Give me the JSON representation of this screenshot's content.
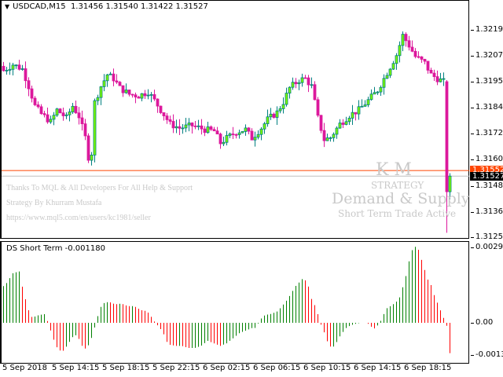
{
  "header": {
    "symbol": "USDCAD,M15",
    "ohlc": "1.31456 1.31540 1.31422 1.31527"
  },
  "indicator": {
    "title": "DS Short Term -0.001180"
  },
  "credits": [
    "Thanks To MQL & All Developers For All Help & Support",
    "Strategy By Khurram Mustafa",
    "https://www.mql5.com/en/users/kc1981/seller"
  ],
  "watermark": {
    "initials": "K M",
    "strategy": "STRATEGY",
    "title": "Demand & Supply",
    "status": "Short Term Trade Active"
  },
  "price_axis": [
    "1.32190",
    "1.32075",
    "1.31955",
    "1.31840",
    "1.31720",
    "1.31600",
    "1.31485",
    "1.31365",
    "1.31250"
  ],
  "price_tags": {
    "ask": "1.31552",
    "bid": "1.31527"
  },
  "indicator_axis": [
    "0.002969",
    "0.00",
    "-0.001377"
  ],
  "time_axis": [
    "5 Sep 2018",
    "5 Sep 14:15",
    "5 Sep 18:15",
    "5 Sep 22:15",
    "6 Sep 02:15",
    "6 Sep 06:15",
    "6 Sep 10:15",
    "6 Sep 14:15",
    "6 Sep 18:15"
  ],
  "colors": {
    "bull_body": "#7cfc00",
    "bull_line": "#008080",
    "bear": "#dc189c",
    "ask_line": "#ff4500",
    "bid_line": "#c0c0c0",
    "hist_up": "#008000",
    "hist_down": "#ff0000"
  },
  "candles": {
    "count": 143,
    "close_waypoints": [
      [
        0,
        1.32005
      ],
      [
        3,
        1.32033
      ],
      [
        6,
        1.32012
      ],
      [
        8,
        1.31934
      ],
      [
        10,
        1.31845
      ],
      [
        12,
        1.31809
      ],
      [
        15,
        1.31773
      ],
      [
        17,
        1.31827
      ],
      [
        20,
        1.31791
      ],
      [
        22,
        1.31845
      ],
      [
        24,
        1.31798
      ],
      [
        26,
        1.31702
      ],
      [
        27,
        1.31613
      ],
      [
        28,
        1.31631
      ],
      [
        29,
        1.31862
      ],
      [
        31,
        1.31934
      ],
      [
        33,
        1.31987
      ],
      [
        35,
        1.31969
      ],
      [
        37,
        1.31927
      ],
      [
        40,
        1.31898
      ],
      [
        43,
        1.31891
      ],
      [
        46,
        1.31909
      ],
      [
        48,
        1.3187
      ],
      [
        50,
        1.31827
      ],
      [
        53,
        1.31763
      ],
      [
        56,
        1.31745
      ],
      [
        60,
        1.31756
      ],
      [
        64,
        1.31738
      ],
      [
        67,
        1.31731
      ],
      [
        69,
        1.31677
      ],
      [
        71,
        1.31699
      ],
      [
        74,
        1.31727
      ],
      [
        77,
        1.31738
      ],
      [
        79,
        1.31699
      ],
      [
        82,
        1.31745
      ],
      [
        84,
        1.31784
      ],
      [
        87,
        1.31816
      ],
      [
        89,
        1.31862
      ],
      [
        91,
        1.31927
      ],
      [
        94,
        1.31962
      ],
      [
        96,
        1.31969
      ],
      [
        98,
        1.31934
      ],
      [
        100,
        1.31791
      ],
      [
        102,
        1.31692
      ],
      [
        104,
        1.31702
      ],
      [
        107,
        1.31763
      ],
      [
        110,
        1.31802
      ],
      [
        113,
        1.31827
      ],
      [
        116,
        1.3187
      ],
      [
        119,
        1.31916
      ],
      [
        121,
        1.31969
      ],
      [
        125,
        1.32076
      ],
      [
        127,
        1.32165
      ],
      [
        129,
        1.32119
      ],
      [
        131,
        1.32069
      ],
      [
        134,
        1.3204
      ],
      [
        136,
        1.31987
      ],
      [
        138,
        1.31969
      ],
      [
        140,
        1.31955
      ],
      [
        141,
        1.31456
      ],
      [
        142,
        1.31527
      ]
    ],
    "last": {
      "open": 1.31456,
      "high": 1.3154,
      "low": 1.31422,
      "close": 1.31527
    },
    "prev_low": 1.3127
  },
  "histogram": {
    "count": 141,
    "waypoints": [
      [
        0,
        0.00143
      ],
      [
        1,
        0.00155
      ],
      [
        3,
        0.00194
      ],
      [
        5,
        0.002
      ],
      [
        6,
        0.00135
      ],
      [
        7,
        0.00087
      ],
      [
        8,
        0.00044
      ],
      [
        9,
        0.0002
      ],
      [
        11,
        0.0003
      ],
      [
        13,
        0.00034
      ],
      [
        14,
        0
      ],
      [
        15,
        -0.00038
      ],
      [
        16,
        -0.00074
      ],
      [
        17,
        -0.00102
      ],
      [
        18,
        -0.0011
      ],
      [
        19,
        -0.00108
      ],
      [
        20,
        -0.00087
      ],
      [
        22,
        -0.0005
      ],
      [
        23,
        -0.00048
      ],
      [
        24,
        -0.0007
      ],
      [
        25,
        -0.001
      ],
      [
        26,
        -0.001
      ],
      [
        27,
        -0.0008
      ],
      [
        28,
        -0.00045
      ],
      [
        29,
        0
      ],
      [
        30,
        0.00045
      ],
      [
        31,
        0.00075
      ],
      [
        33,
        0.00082
      ],
      [
        35,
        0.00072
      ],
      [
        37,
        0.00075
      ],
      [
        39,
        0.00065
      ],
      [
        41,
        0.00065
      ],
      [
        43,
        0.0005
      ],
      [
        45,
        0.00045
      ],
      [
        46,
        0.0003
      ],
      [
        47,
        0.0001
      ],
      [
        48,
        -5e-05
      ],
      [
        50,
        -0.00035
      ],
      [
        51,
        -0.0007
      ],
      [
        52,
        -0.00085
      ],
      [
        54,
        -0.0009
      ],
      [
        56,
        -0.0009
      ],
      [
        58,
        -0.00098
      ],
      [
        60,
        -0.00098
      ],
      [
        62,
        -0.0009
      ],
      [
        64,
        -0.0007
      ],
      [
        66,
        -0.0008
      ],
      [
        68,
        -0.0009
      ],
      [
        70,
        -0.0008
      ],
      [
        72,
        -0.0006
      ],
      [
        74,
        -0.0004
      ],
      [
        76,
        -0.0003
      ],
      [
        78,
        -0.0002
      ],
      [
        79,
        -0.0002
      ],
      [
        80,
        0
      ],
      [
        81,
        0.0002
      ],
      [
        82,
        0.0003
      ],
      [
        84,
        0.00035
      ],
      [
        86,
        0.00045
      ],
      [
        87,
        0.0006
      ],
      [
        89,
        0.0009
      ],
      [
        90,
        0.0011
      ],
      [
        91,
        0.0013
      ],
      [
        92,
        0.0015
      ],
      [
        93,
        0.0016
      ],
      [
        94,
        0.00175
      ],
      [
        95,
        0.0016
      ],
      [
        96,
        0.0013
      ],
      [
        97,
        0.0007
      ],
      [
        98,
        0.00068
      ],
      [
        99,
        0.0001
      ],
      [
        100,
        -0.0002
      ],
      [
        101,
        -0.0005
      ],
      [
        102,
        -0.0009
      ],
      [
        103,
        -0.00095
      ],
      [
        104,
        -0.0009
      ],
      [
        105,
        -0.0006
      ],
      [
        106,
        -0.00045
      ],
      [
        107,
        -0.00025
      ],
      [
        108,
        -0.00015
      ],
      [
        110,
        -5e-05
      ],
      [
        112,
        0
      ],
      [
        114,
        0
      ],
      [
        115,
        -0.0001
      ],
      [
        116,
        -0.00025
      ],
      [
        117,
        -0.00015
      ],
      [
        118,
        0
      ],
      [
        119,
        0.00025
      ],
      [
        120,
        0.00055
      ],
      [
        122,
        0.0007
      ],
      [
        124,
        0.0009
      ],
      [
        125,
        0.0013
      ],
      [
        126,
        0.0017
      ],
      [
        127,
        0.0023
      ],
      [
        128,
        0.0028
      ],
      [
        129,
        0.00297
      ],
      [
        130,
        0.0029
      ],
      [
        131,
        0.0025
      ],
      [
        132,
        0.0021
      ],
      [
        133,
        0.0017
      ],
      [
        134,
        0.0015
      ],
      [
        135,
        0.0011
      ],
      [
        136,
        0.0008
      ],
      [
        137,
        0.0005
      ],
      [
        138,
        0.0002
      ],
      [
        139,
        -0.0001
      ],
      [
        140,
        -0.00118
      ]
    ]
  }
}
